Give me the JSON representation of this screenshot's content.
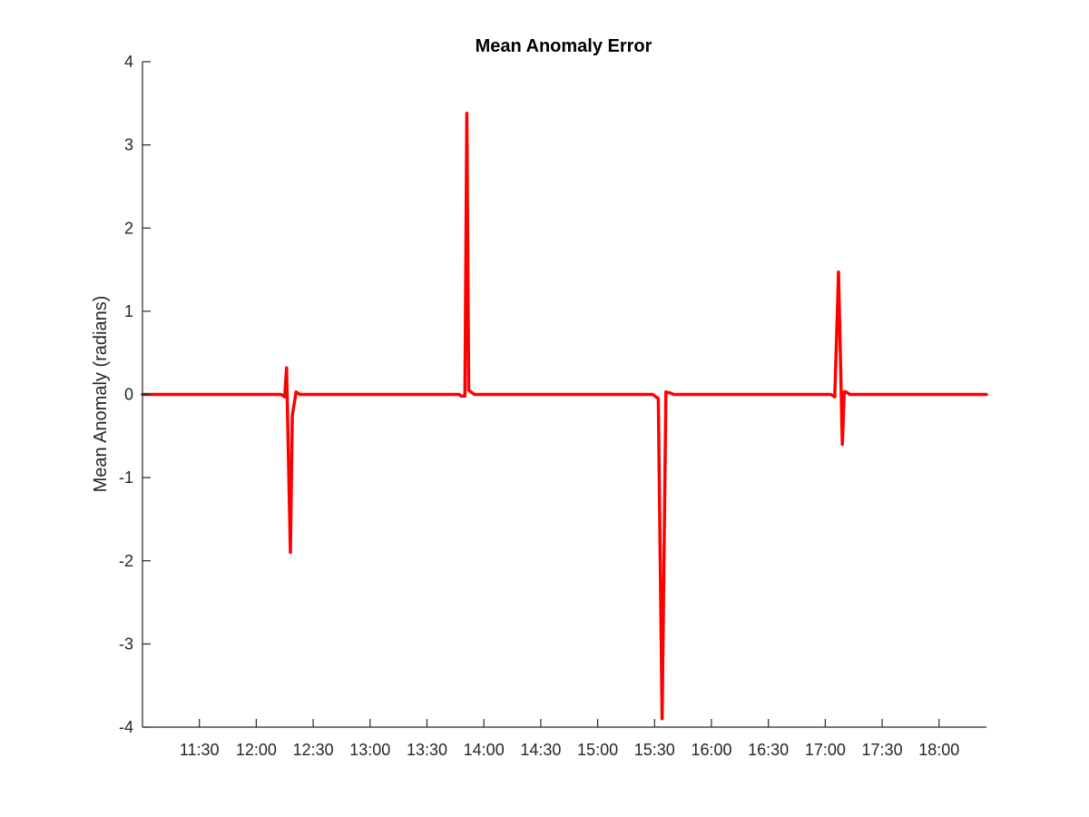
{
  "chart_data": {
    "type": "line",
    "title": "Mean Anomaly Error",
    "xlabel": "",
    "ylabel": "Mean Anomaly (radians)",
    "xlim": [
      "11:00",
      "18:25"
    ],
    "ylim": [
      -4,
      4
    ],
    "x_ticks": [
      "11:30",
      "12:00",
      "12:30",
      "13:00",
      "13:30",
      "14:00",
      "14:30",
      "15:00",
      "15:30",
      "16:00",
      "16:30",
      "17:00",
      "17:30",
      "18:00"
    ],
    "y_ticks": [
      "-4",
      "-3",
      "-2",
      "-1",
      "0",
      "1",
      "2",
      "3",
      "4"
    ],
    "grid": false,
    "box": false,
    "series": [
      {
        "color": "#ff0000",
        "points": [
          [
            "11:00",
            0
          ],
          [
            "12:13",
            0
          ],
          [
            "12:15",
            -0.03
          ],
          [
            "12:16",
            0.32
          ],
          [
            "12:18",
            -1.9
          ],
          [
            "12:19",
            -0.25
          ],
          [
            "12:21",
            0.03
          ],
          [
            "12:23",
            0
          ],
          [
            "13:47",
            0
          ],
          [
            "13:48",
            -0.02
          ],
          [
            "13:50",
            -0.02
          ],
          [
            "13:51",
            3.38
          ],
          [
            "13:52",
            0.05
          ],
          [
            "13:55",
            0
          ],
          [
            "15:29",
            0
          ],
          [
            "15:32",
            -0.05
          ],
          [
            "15:34",
            -3.9
          ],
          [
            "15:36",
            0.03
          ],
          [
            "15:38",
            0.02
          ],
          [
            "15:40",
            0
          ],
          [
            "17:03",
            0
          ],
          [
            "17:05",
            -0.03
          ],
          [
            "17:06",
            0.7
          ],
          [
            "17:07",
            1.47
          ],
          [
            "17:09",
            -0.6
          ],
          [
            "17:10",
            0.03
          ],
          [
            "17:11",
            0.03
          ],
          [
            "17:13",
            0
          ],
          [
            "18:25",
            0
          ]
        ]
      }
    ]
  }
}
